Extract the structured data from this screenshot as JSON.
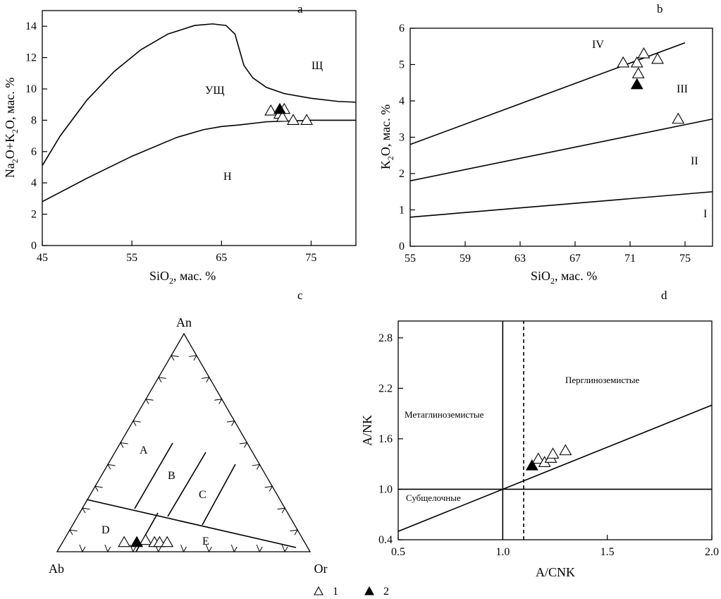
{
  "legend": {
    "open_triangle_label": "1",
    "filled_triangle_label": "2"
  },
  "chart_data": [
    {
      "panel": "a",
      "type": "scatter",
      "xlabel": "SiO2, мас. %",
      "ylabel": "Na2O+K2O, мас. %",
      "xlim": [
        45,
        80
      ],
      "ylim": [
        0,
        15
      ],
      "xticks": [
        45,
        55,
        65,
        75
      ],
      "yticks": [
        0,
        2,
        4,
        6,
        8,
        10,
        12,
        14
      ],
      "field_labels": [
        "Щ",
        "УЩ",
        "Н"
      ],
      "boundary_upper": {
        "x": [
          45,
          47,
          50,
          53,
          56,
          59,
          62,
          64,
          65.5,
          66.5,
          67,
          67.5,
          68.5,
          70,
          72,
          75,
          78,
          80
        ],
        "y": [
          5.1,
          7.0,
          9.3,
          11.1,
          12.5,
          13.5,
          14.05,
          14.15,
          14.05,
          13.5,
          12.5,
          11.5,
          10.7,
          10.1,
          9.7,
          9.4,
          9.2,
          9.15
        ]
      },
      "boundary_lower": {
        "x": [
          45,
          50,
          55,
          60,
          63,
          65,
          67,
          70,
          75,
          80
        ],
        "y": [
          2.8,
          4.3,
          5.7,
          6.9,
          7.4,
          7.6,
          7.7,
          7.9,
          8.0,
          8.0
        ]
      },
      "series": [
        {
          "name": "1",
          "marker": "open-triangle",
          "x": [
            70.5,
            71.5,
            72.0,
            73.0,
            74.5,
            71.8
          ],
          "y": [
            8.6,
            8.4,
            8.7,
            8.0,
            8.0,
            8.2
          ]
        },
        {
          "name": "2",
          "marker": "filled-triangle",
          "x": [
            71.5
          ],
          "y": [
            8.7
          ]
        }
      ]
    },
    {
      "panel": "b",
      "type": "scatter",
      "xlabel": "SiO2, мас. %",
      "ylabel": "K2O, мас. %",
      "xlim": [
        55,
        77
      ],
      "ylim": [
        0,
        6
      ],
      "xticks": [
        55,
        59,
        63,
        67,
        71,
        75
      ],
      "yticks": [
        0,
        1,
        2,
        3,
        4,
        5,
        6
      ],
      "field_labels": [
        "IV",
        "III",
        "II",
        "I"
      ],
      "lines": [
        {
          "x": [
            55,
            77
          ],
          "y": [
            0.8,
            1.5
          ]
        },
        {
          "x": [
            55,
            77
          ],
          "y": [
            1.8,
            3.5
          ]
        },
        {
          "x": [
            55,
            75
          ],
          "y": [
            2.8,
            5.6
          ]
        }
      ],
      "series": [
        {
          "name": "1",
          "marker": "open-triangle",
          "x": [
            70.5,
            71.5,
            72.0,
            71.6,
            73.0,
            74.5
          ],
          "y": [
            5.05,
            5.05,
            5.3,
            4.75,
            5.15,
            3.5
          ]
        },
        {
          "name": "2",
          "marker": "filled-triangle",
          "x": [
            71.5
          ],
          "y": [
            4.45
          ]
        }
      ]
    },
    {
      "panel": "c",
      "type": "scatter",
      "vertex_labels": [
        "An",
        "Ab",
        "Or"
      ],
      "field_labels": [
        "A",
        "B",
        "C",
        "D",
        "E"
      ],
      "series": [
        {
          "name": "1",
          "marker": "open-triangle",
          "an_ab_or": [
            [
              3,
              72,
              25
            ],
            [
              4,
              63,
              33
            ],
            [
              3,
              60,
              37
            ],
            [
              3,
              58,
              39
            ],
            [
              3,
              55,
              42
            ]
          ]
        },
        {
          "name": "2",
          "marker": "filled-triangle",
          "an_ab_or": [
            [
              3,
              67,
              30
            ]
          ]
        }
      ]
    },
    {
      "panel": "d",
      "type": "scatter",
      "xlabel": "A/CNK",
      "ylabel": "A/NK",
      "xlim": [
        0.5,
        2.0
      ],
      "ylim": [
        0.4,
        3.0
      ],
      "xticks": [
        0.5,
        1.0,
        1.5,
        2.0
      ],
      "yticks": [
        0.4,
        1.0,
        1.6,
        2.2,
        2.8
      ],
      "field_labels": [
        "Перглиноземистые",
        "Метаглиноземистые",
        "Субщелочные"
      ],
      "lines": [
        {
          "x": [
            1.0,
            1.0
          ],
          "y": [
            0.4,
            3.0
          ],
          "style": "solid"
        },
        {
          "x": [
            1.1,
            1.1
          ],
          "y": [
            0.4,
            3.0
          ],
          "style": "dashed"
        },
        {
          "x": [
            0.5,
            2.0
          ],
          "y": [
            1.0,
            1.0
          ],
          "style": "solid"
        },
        {
          "x": [
            0.5,
            2.0
          ],
          "y": [
            0.5,
            2.0
          ],
          "style": "solid"
        }
      ],
      "series": [
        {
          "name": "1",
          "marker": "open-triangle",
          "x": [
            1.17,
            1.2,
            1.23,
            1.24,
            1.3
          ],
          "y": [
            1.36,
            1.32,
            1.37,
            1.42,
            1.46
          ]
        },
        {
          "name": "2",
          "marker": "filled-triangle",
          "x": [
            1.14
          ],
          "y": [
            1.28
          ]
        }
      ]
    }
  ]
}
